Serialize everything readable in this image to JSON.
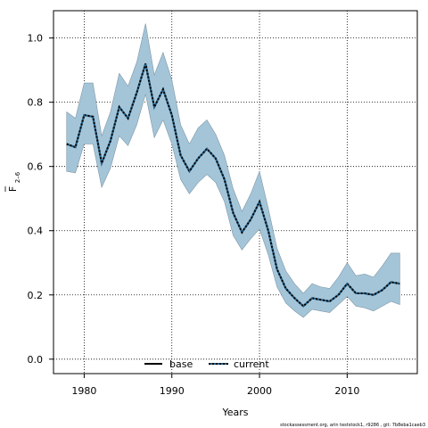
{
  "chart_data": {
    "type": "line",
    "xlabel": "Years",
    "ylabel_main": "F",
    "ylabel_sub": "2–6",
    "xlim": [
      1976.5,
      2018
    ],
    "ylim": [
      -0.045,
      1.085
    ],
    "x_ticks": [
      1980,
      1990,
      2000,
      2010
    ],
    "y_ticks": [
      "0.0",
      "0.2",
      "0.4",
      "0.6",
      "0.8",
      "1.0"
    ],
    "grid": true,
    "legend_position": "bottom",
    "colors": {
      "band": "#a4c5d8",
      "band_edge": "#7f97a8",
      "current": "#000000",
      "base": "#000000",
      "dash_accent": "#1f5e8a"
    },
    "x": [
      1978,
      1979,
      1980,
      1981,
      1982,
      1983,
      1984,
      1985,
      1986,
      1987,
      1988,
      1989,
      1990,
      1991,
      1992,
      1993,
      1994,
      1995,
      1996,
      1997,
      1998,
      1999,
      2000,
      2001,
      2002,
      2003,
      2004,
      2005,
      2006,
      2007,
      2008,
      2009,
      2010,
      2011,
      2012,
      2013,
      2014,
      2015,
      2016
    ],
    "series": [
      {
        "name": "base",
        "style": "solid",
        "values": [
          0.67,
          0.66,
          0.76,
          0.755,
          0.61,
          0.68,
          0.785,
          0.75,
          0.83,
          0.92,
          0.785,
          0.84,
          0.76,
          0.635,
          0.585,
          0.625,
          0.655,
          0.625,
          0.56,
          0.455,
          0.395,
          0.435,
          0.49,
          0.4,
          0.28,
          0.22,
          0.19,
          0.165,
          0.19,
          0.185,
          0.18,
          0.2,
          0.235,
          0.205,
          0.205,
          0.2,
          0.215,
          0.24,
          0.235
        ]
      },
      {
        "name": "current",
        "style": "dotted",
        "values": [
          0.67,
          0.66,
          0.76,
          0.755,
          0.61,
          0.68,
          0.785,
          0.75,
          0.83,
          0.92,
          0.785,
          0.84,
          0.76,
          0.635,
          0.585,
          0.625,
          0.655,
          0.625,
          0.56,
          0.455,
          0.395,
          0.435,
          0.49,
          0.4,
          0.28,
          0.22,
          0.19,
          0.165,
          0.19,
          0.185,
          0.18,
          0.2,
          0.235,
          0.205,
          0.205,
          0.2,
          0.215,
          0.24,
          0.235
        ]
      }
    ],
    "band": {
      "upper": [
        0.77,
        0.75,
        0.86,
        0.86,
        0.695,
        0.77,
        0.89,
        0.85,
        0.925,
        1.045,
        0.885,
        0.955,
        0.87,
        0.73,
        0.67,
        0.72,
        0.745,
        0.7,
        0.635,
        0.53,
        0.46,
        0.515,
        0.585,
        0.47,
        0.345,
        0.275,
        0.235,
        0.205,
        0.235,
        0.225,
        0.22,
        0.255,
        0.3,
        0.26,
        0.265,
        0.255,
        0.29,
        0.33,
        0.33
      ],
      "lower": [
        0.585,
        0.58,
        0.67,
        0.67,
        0.535,
        0.595,
        0.695,
        0.665,
        0.73,
        0.825,
        0.69,
        0.745,
        0.67,
        0.56,
        0.515,
        0.55,
        0.575,
        0.55,
        0.49,
        0.385,
        0.34,
        0.375,
        0.405,
        0.325,
        0.225,
        0.175,
        0.15,
        0.13,
        0.155,
        0.15,
        0.145,
        0.17,
        0.195,
        0.165,
        0.16,
        0.15,
        0.165,
        0.18,
        0.17
      ]
    }
  },
  "footnote": "stockassessment.org, arin teststock1, r9286 , git: 7b8eba1caeb3"
}
